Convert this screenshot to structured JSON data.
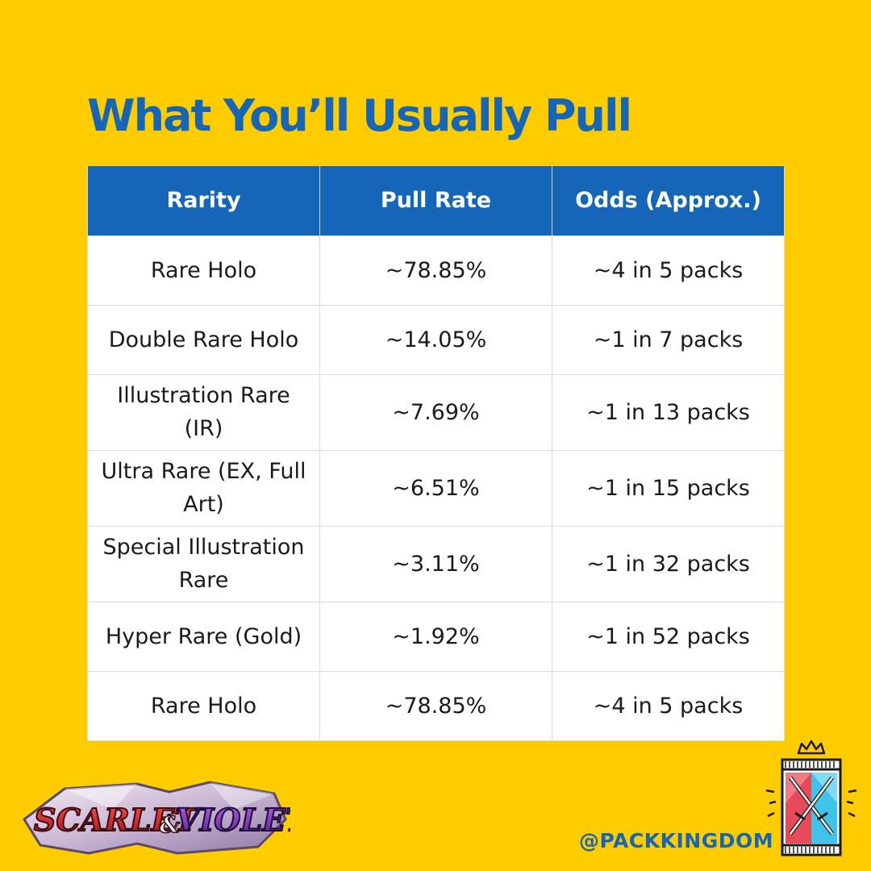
{
  "title": "What You’ll Usually Pull",
  "table": {
    "headers": [
      "Rarity",
      "Pull Rate",
      "Odds (Approx.)"
    ],
    "rows": [
      [
        "Rare Holo",
        "~78.85%",
        "~4 in 5 packs"
      ],
      [
        "Double Rare Holo",
        "~14.05%",
        "~1 in 7 packs"
      ],
      [
        "Illustration Rare (IR)",
        "~7.69%",
        "~1 in 13 packs"
      ],
      [
        "Ultra Rare (EX, Full Art)",
        "~6.51%",
        "~1 in 15 packs"
      ],
      [
        "Special Illustration Rare",
        "~3.11%",
        "~1 in 32 packs"
      ],
      [
        "Hyper Rare (Gold)",
        "~1.92%",
        "~1 in 52 packs"
      ],
      [
        "Rare Holo",
        "~78.85%",
        "~4 in 5 packs"
      ]
    ]
  },
  "brand_logo": {
    "text_part1": "SCARLET",
    "ampersand": "&",
    "text_part2": "VIOLET",
    "icon": "scarlet-violet-logo"
  },
  "handle": "@PACKKINGDOM",
  "mascot_icon": "pack-kingdom-crowned-booster-pack-icon",
  "colors": {
    "background": "#FFCC00",
    "accent": "#1565B8",
    "table_bg": "#FFFFFF"
  }
}
